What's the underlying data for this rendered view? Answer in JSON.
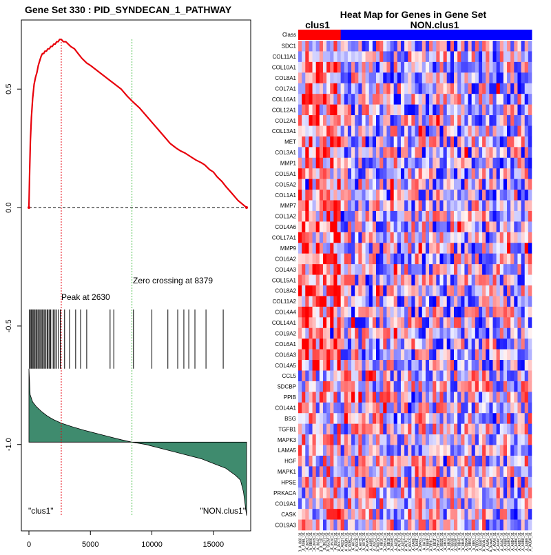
{
  "chart_data": [
    {
      "type": "line",
      "title": "Gene Set  330 : PID_SYNDECAN_1_PATHWAY",
      "xlim": [
        0,
        17700
      ],
      "ylim": [
        -1.35,
        0.78
      ],
      "x_ticks": [
        0,
        5000,
        10000,
        15000
      ],
      "x_tick_labels": [
        "0",
        "5000",
        "10000",
        "15000"
      ],
      "y_ticks": [
        0.5,
        0.0,
        -0.5,
        -1.0
      ],
      "y_tick_labels": [
        "0.5",
        "0.0",
        "-0.5",
        "-1.0"
      ],
      "enrichment_curve": {
        "color": "#e8000b",
        "x": [
          0,
          60,
          120,
          200,
          300,
          420,
          540,
          650,
          760,
          880,
          1000,
          1100,
          1200,
          1300,
          1420,
          1540,
          1660,
          1780,
          1900,
          2020,
          2140,
          2260,
          2380,
          2500,
          2630,
          2800,
          3000,
          3200,
          3400,
          3700,
          4000,
          4300,
          4700,
          5000,
          5500,
          6000,
          6500,
          7000,
          7500,
          8000,
          8379,
          9000,
          9500,
          10000,
          10500,
          11000,
          11500,
          12000,
          12300,
          12700,
          13000,
          13300,
          13600,
          14000,
          14300,
          14700,
          15000,
          15300,
          15700,
          16000,
          16500,
          17000,
          17700
        ],
        "y": [
          0.0,
          0.16,
          0.28,
          0.38,
          0.46,
          0.52,
          0.55,
          0.57,
          0.6,
          0.62,
          0.64,
          0.65,
          0.65,
          0.66,
          0.66,
          0.67,
          0.67,
          0.68,
          0.68,
          0.69,
          0.69,
          0.7,
          0.7,
          0.71,
          0.71,
          0.7,
          0.7,
          0.69,
          0.68,
          0.67,
          0.65,
          0.63,
          0.61,
          0.6,
          0.58,
          0.56,
          0.54,
          0.52,
          0.5,
          0.47,
          0.45,
          0.42,
          0.39,
          0.36,
          0.33,
          0.3,
          0.27,
          0.25,
          0.24,
          0.23,
          0.22,
          0.21,
          0.2,
          0.19,
          0.18,
          0.16,
          0.15,
          0.13,
          0.11,
          0.09,
          0.06,
          0.03,
          0.0
        ]
      },
      "baseline": {
        "y": 0.0,
        "style": "dashed"
      },
      "peak": {
        "x": 2630,
        "label": "Peak at 2630",
        "color": "#e8000b"
      },
      "zero_crossing": {
        "x": 8379,
        "label": "Zero crossing at 8379",
        "color": "#4cbf4c"
      },
      "hit_ticks": {
        "y_range": [
          -0.43,
          -0.68
        ],
        "positions": [
          40,
          120,
          200,
          300,
          380,
          470,
          560,
          640,
          730,
          820,
          900,
          1000,
          1080,
          1180,
          1280,
          1380,
          1480,
          1560,
          1660,
          1760,
          1880,
          2000,
          2120,
          2250,
          2400,
          2550,
          2900,
          3300,
          3800,
          4200,
          4700,
          6600,
          6900,
          8500,
          10000,
          11300,
          12100,
          12600,
          13000,
          13500,
          14400,
          15800
        ]
      },
      "ranked_metric": {
        "color": "#3f8b6e",
        "baseline_y": -0.99,
        "x": [
          0,
          100,
          300,
          600,
          1000,
          1500,
          2000,
          2630,
          3500,
          4500,
          6000,
          7500,
          8379,
          9500,
          11000,
          12500,
          14000,
          15000,
          16000,
          16800,
          17200,
          17450,
          17600,
          17700
        ],
        "y": [
          -0.68,
          -0.79,
          -0.82,
          -0.84,
          -0.86,
          -0.88,
          -0.895,
          -0.91,
          -0.925,
          -0.94,
          -0.96,
          -0.98,
          -0.99,
          -1.0,
          -1.02,
          -1.04,
          -1.06,
          -1.08,
          -1.1,
          -1.13,
          -1.15,
          -1.2,
          -1.26,
          -1.3
        ]
      },
      "class_labels": {
        "left": "\"clus1\"",
        "right": "\"NON.clus1\""
      }
    },
    {
      "type": "heatmap",
      "title": "Heat Map for Genes in Gene Set",
      "class_row_label": "Class",
      "groups": [
        {
          "name": "clus1",
          "columns": 12,
          "color": "#ff0000"
        },
        {
          "name": "NON.clus1",
          "columns": 54,
          "color": "#0000ff"
        }
      ],
      "genes": [
        "SDC1",
        "COL11A1",
        "COL10A1",
        "COL8A1",
        "COL7A1",
        "COL16A1",
        "COL12A1",
        "COL2A1",
        "COL13A1",
        "MET",
        "COL3A1",
        "MMP1",
        "COL5A1",
        "COL5A2",
        "COL1A1",
        "MMP7",
        "COL1A2",
        "COL4A6",
        "COL17A1",
        "MMP9",
        "COL6A2",
        "COL4A3",
        "COL15A1",
        "COL8A2",
        "COL11A2",
        "COL4A4",
        "COL14A1",
        "COL9A2",
        "COL6A1",
        "COL6A3",
        "COL4A5",
        "CCL5",
        "SDCBP",
        "PPIB",
        "COL4A1",
        "BSG",
        "TGFB1",
        "MAPK3",
        "LAMA5",
        "HGF",
        "MAPK1",
        "HPSE",
        "PRKACA",
        "COL9A1",
        "CASK",
        "COL9A3"
      ],
      "sample_labels": [
        "ROB_A_860_01",
        "ROB_A_A0BL_01",
        "ROB_A_8653_01",
        "ROB_A_8B06_01",
        "ROB_A_8609_01",
        "ROB_A_8642_01",
        "ROB_A_720_01",
        "ROB_A_8521_01",
        "ROB_A_85CM_01",
        "ROB_A_8530_01",
        "ROB_A_8501_01",
        "ROB_A_A0CT_01",
        "ROB_A_A0CH_01",
        "ROB_A_A0BN_01",
        "ROB_A_A0BC_01",
        "ROB_A_A07Z_01",
        "ROB_A_A0CB_01",
        "ROB_A_A0T5_01",
        "ROB_A_A0T6_01",
        "ROB_A_A0AS_01",
        "ROB_A_A0B5_01",
        "ROB_A_A0C2_01",
        "ROB_A_A0CN_01",
        "ROB_A_8B10_01",
        "ROB_A_8B1A_01",
        "ROB_A_8B18_01",
        "ROB_A_8B1B_01",
        "ROB_A_A0TA_01",
        "ROB_A_A0TD_01",
        "ROB_A_A0TZ_01",
        "ROB_A_A0TC_01",
        "ROB_A_A0CS_01",
        "ROB_A_8A6E_01",
        "ROB_A_8A6F_01",
        "ROB_A_8A6G_01",
        "ROB_A_8A73_01",
        "ROB_A_8B0F_01",
        "ROB_A_8B1C_01",
        "ROB_A_8B1F_01",
        "ROB_A_8B2D_01",
        "ROB_A_8B2E_01",
        "ROB_A_8B33_01",
        "ROB_A_8B38_01",
        "ROB_A_8B3B_01",
        "ROB_A_8B3E_01",
        "ROB_A_8B43_01",
        "ROB_A_8B45_01",
        "ROB_A_8B4A_01",
        "ROB_A_8B50_01",
        "ROB_A_8B57_01",
        "ROB_A_8B5C_01",
        "ROB_A_A0AT_01",
        "ROB_A_A0AU_01",
        "ROB_A_A0AV_01",
        "ROB_A_A0AW_01",
        "ROB_A_A0AX_01",
        "ROB_A_A0AY_01",
        "ROB_A_A0AZ_01",
        "ROB_A_A0B0_01",
        "ROB_A_A0B3_01",
        "ROB_A_A0B4_01",
        "ROB_A_A0B6_01",
        "ROB_A_A0B7_01",
        "ROB_A_A0B8_01",
        "ROB_A_A0B9_01",
        "ROB_A_A0BA_01"
      ],
      "value_range": [
        -1,
        1
      ],
      "colors": {
        "low": "#0000ff",
        "mid": "#f5f5f5",
        "high": "#ff0000"
      }
    }
  ]
}
